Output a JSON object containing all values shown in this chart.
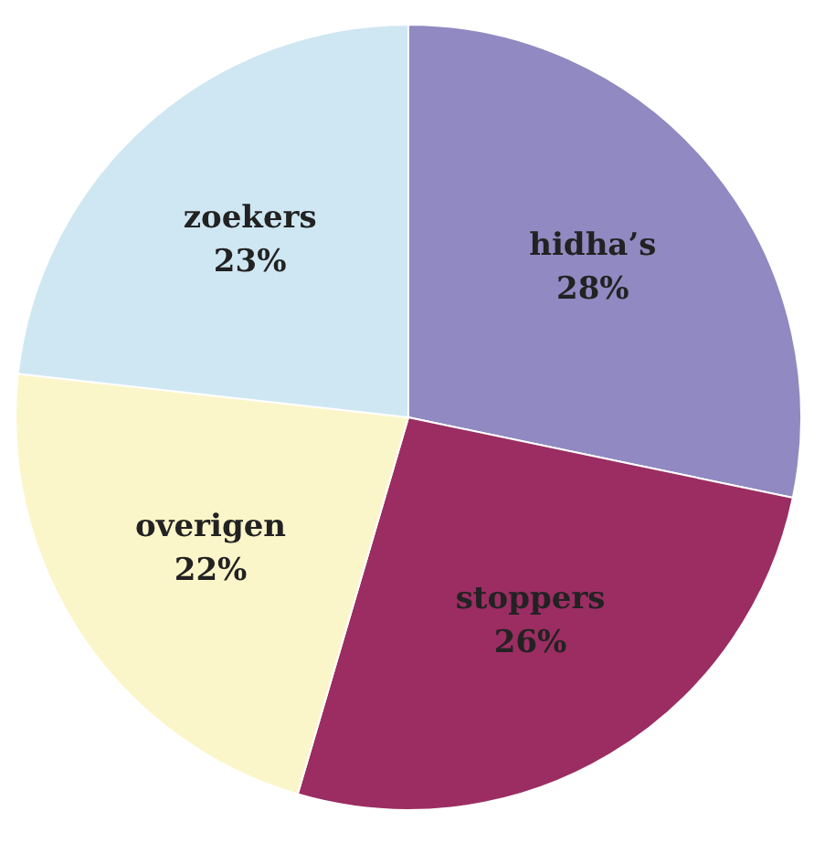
{
  "chart_data": {
    "type": "pie",
    "categories": [
      "hidha’s",
      "stoppers",
      "overigen",
      "zoekers"
    ],
    "values": [
      28,
      26,
      22,
      23
    ],
    "value_labels": [
      "28%",
      "26%",
      "22%",
      "23%"
    ],
    "colors": [
      "#9189c1",
      "#9b2d62",
      "#fbf6c9",
      "#cfe7f2"
    ],
    "legend": false
  }
}
